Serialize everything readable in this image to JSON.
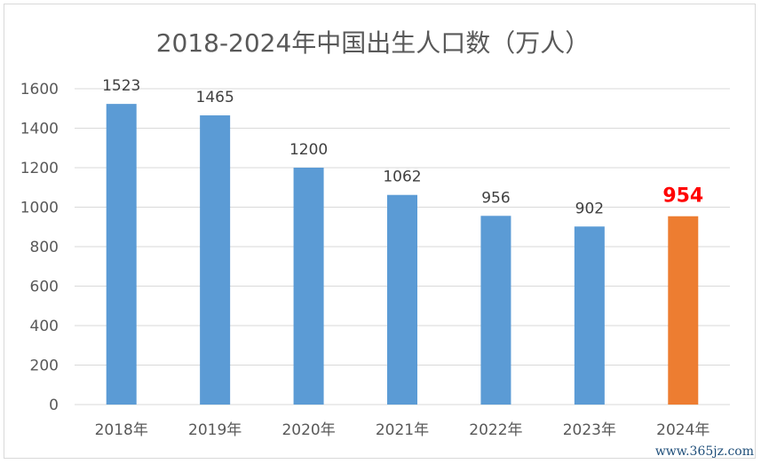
{
  "chart_data": {
    "type": "bar",
    "title": "2018-2024年中国出生人口数（万人）",
    "categories": [
      "2018年",
      "2019年",
      "2020年",
      "2021年",
      "2022年",
      "2023年",
      "2024年"
    ],
    "values": [
      1523,
      1465,
      1200,
      1062,
      956,
      902,
      954
    ],
    "data_labels": [
      "1523",
      "1465",
      "1200",
      "1062",
      "956",
      "902",
      "954"
    ],
    "ylim": [
      0,
      1600
    ],
    "yticks": [
      0,
      200,
      400,
      600,
      800,
      1000,
      1200,
      1400,
      1600
    ],
    "grid": true,
    "colors": {
      "default": "#5b9bd5",
      "highlight": "#ed7d31",
      "highlight_label": "#ff0000"
    },
    "highlight_index": 6
  },
  "watermark": "www.365jz.com"
}
